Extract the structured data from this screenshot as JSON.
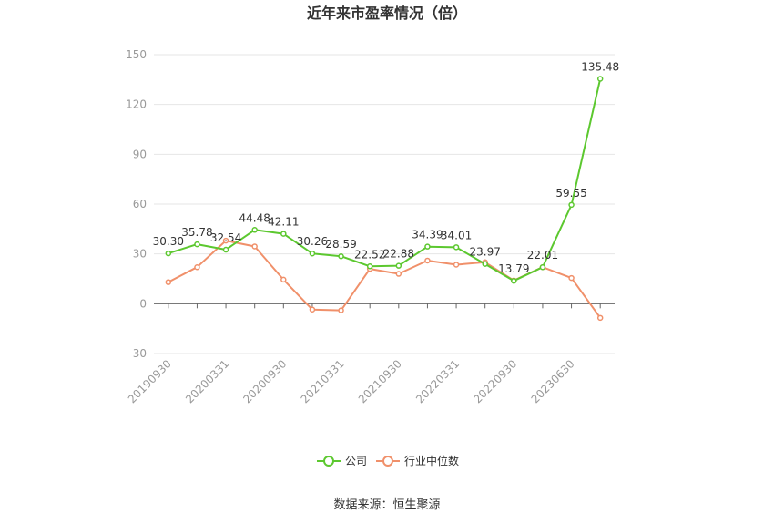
{
  "chart_data": {
    "type": "line",
    "title": "近年来市盈率情况（倍）",
    "source": "数据来源：恒生聚源",
    "ylim": [
      -30,
      150
    ],
    "yticks": [
      -30,
      0,
      30,
      60,
      90,
      120,
      150
    ],
    "x_tick_labels": [
      "20190930",
      "20200331",
      "20200930",
      "20210331",
      "20210930",
      "20220331",
      "20220930",
      "20230630"
    ],
    "x_count": 16,
    "legend_position": "bottom",
    "grid": true,
    "series": [
      {
        "name": "公司",
        "color": "#5cc82f",
        "values": [
          30.3,
          35.78,
          32.54,
          44.48,
          42.11,
          30.26,
          28.59,
          22.52,
          22.88,
          34.39,
          34.01,
          23.97,
          13.79,
          22.01,
          59.55,
          135.48
        ],
        "labels": [
          "30.30",
          "35.78",
          "32.54",
          "44.48",
          "42.11",
          "30.26",
          "28.59",
          "22.52",
          "22.88",
          "34.39",
          "34.01",
          "23.97",
          "13.79",
          "22.01",
          "59.55",
          "135.48"
        ]
      },
      {
        "name": "行业中位数",
        "color": "#f0906a",
        "values": [
          13,
          22,
          38,
          34.5,
          14.5,
          -3.5,
          -4,
          21,
          18,
          26,
          23.5,
          25,
          14,
          22,
          15.5,
          -8.5
        ]
      }
    ]
  }
}
